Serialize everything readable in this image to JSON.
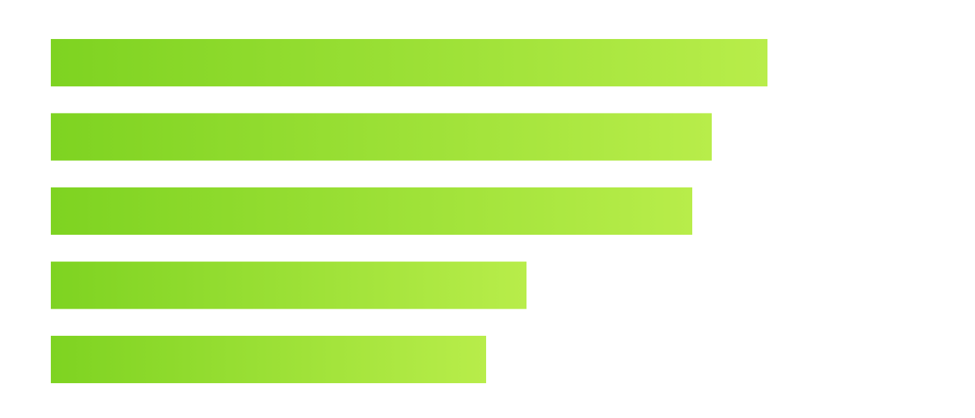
{
  "chart_data": {
    "type": "hbar",
    "categories": [
      null,
      null,
      null,
      null,
      null
    ],
    "values": [
      1029,
      949,
      921,
      683,
      625
    ],
    "gradient_colors": [
      "#7ed321",
      "#b8ed4a"
    ],
    "xlim": [
      0,
      1254
    ]
  }
}
